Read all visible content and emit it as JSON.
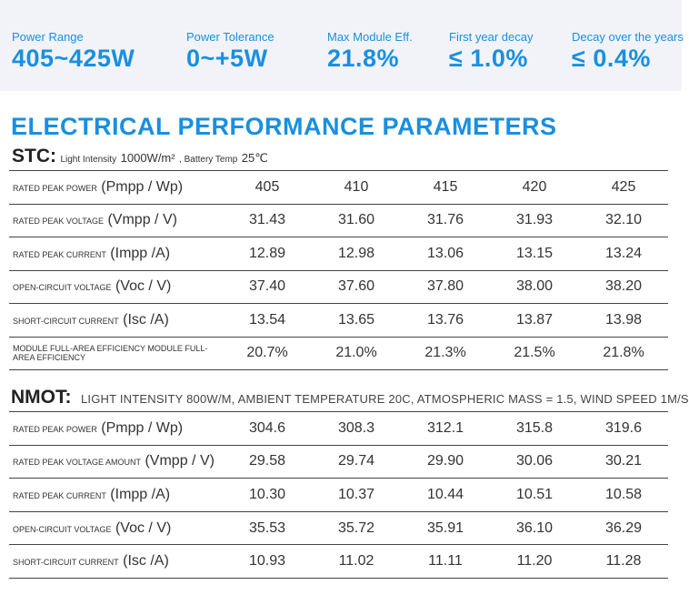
{
  "specs": [
    {
      "label": "Power Range",
      "value": "405~425W"
    },
    {
      "label": "Power Tolerance",
      "value": "0~+5W"
    },
    {
      "label": "Max Module Eff.",
      "value": "21.8%"
    },
    {
      "label": "First year decay",
      "value": "≤ 1.0%"
    },
    {
      "label": "Decay over the years",
      "value": "≤ 0.4%"
    }
  ],
  "title": "ELECTRICAL PERFORMANCE PARAMETERS",
  "stc": {
    "heading": "STC:",
    "cond_light_label": "Light Intensity",
    "cond_light_value": "1000W/m²",
    "cond_sep": ", Battery Temp",
    "cond_temp_value": "25℃",
    "rows": [
      {
        "label_a": "RATED PEAK POWER",
        "label_b": " (Pmpp / Wp)",
        "values": [
          "405",
          "410",
          "415",
          "420",
          "425"
        ]
      },
      {
        "label_a": "RATED PEAK VOLTAGE",
        "label_b": " (Vmpp / V)",
        "values": [
          "31.43",
          "31.60",
          "31.76",
          "31.93",
          "32.10"
        ]
      },
      {
        "label_a": "RATED PEAK CURRENT",
        "label_b": " (Impp /A)",
        "values": [
          "12.89",
          "12.98",
          "13.06",
          "13.15",
          "13.24"
        ]
      },
      {
        "label_a": "OPEN-CIRCUIT VOLTAGE",
        "label_b": "  (Voc / V)",
        "values": [
          "37.40",
          "37.60",
          "37.80",
          "38.00",
          "38.20"
        ]
      },
      {
        "label_a": "SHORT-CIRCUIT CURRENT",
        "label_b": "  (Isc /A)",
        "values": [
          "13.54",
          "13.65",
          "13.76",
          "13.87",
          "13.98"
        ]
      },
      {
        "label_a": "MODULE FULL-AREA EFFICIENCY MODULE FULL-AREA EFFICIENCY",
        "label_b": "",
        "values": [
          "20.7%",
          "21.0%",
          "21.3%",
          "21.5%",
          "21.8%"
        ]
      }
    ]
  },
  "nmot": {
    "heading": "NMOT:",
    "conditions": "LIGHT INTENSITY 800W/M, AMBIENT TEMPERATURE 20C, ATMOSPHERIC MASS = 1.5, WIND SPEED 1M/S",
    "rows": [
      {
        "label_a": "RATED PEAK POWER",
        "label_b": "  (Pmpp / Wp)",
        "values": [
          "304.6",
          "308.3",
          "312.1",
          "315.8",
          "319.6"
        ]
      },
      {
        "label_a": "RATED PEAK VOLTAGE AMOUNT",
        "label_b": " (Vmpp / V)",
        "values": [
          "29.58",
          "29.74",
          "29.90",
          "30.06",
          "30.21"
        ]
      },
      {
        "label_a": "RATED PEAK CURRENT",
        "label_b": " (Impp /A)",
        "values": [
          "10.30",
          "10.37",
          "10.44",
          "10.51",
          "10.58"
        ]
      },
      {
        "label_a": "OPEN-CIRCUIT VOLTAGE",
        "label_b": " (Voc / V)",
        "values": [
          "35.53",
          "35.72",
          "35.91",
          "36.10",
          "36.29"
        ]
      },
      {
        "label_a": "SHORT-CIRCUIT CURRENT",
        "label_b": " (Isc /A)",
        "values": [
          "10.93",
          "11.02",
          "11.11",
          "11.20",
          "11.28"
        ]
      }
    ]
  }
}
